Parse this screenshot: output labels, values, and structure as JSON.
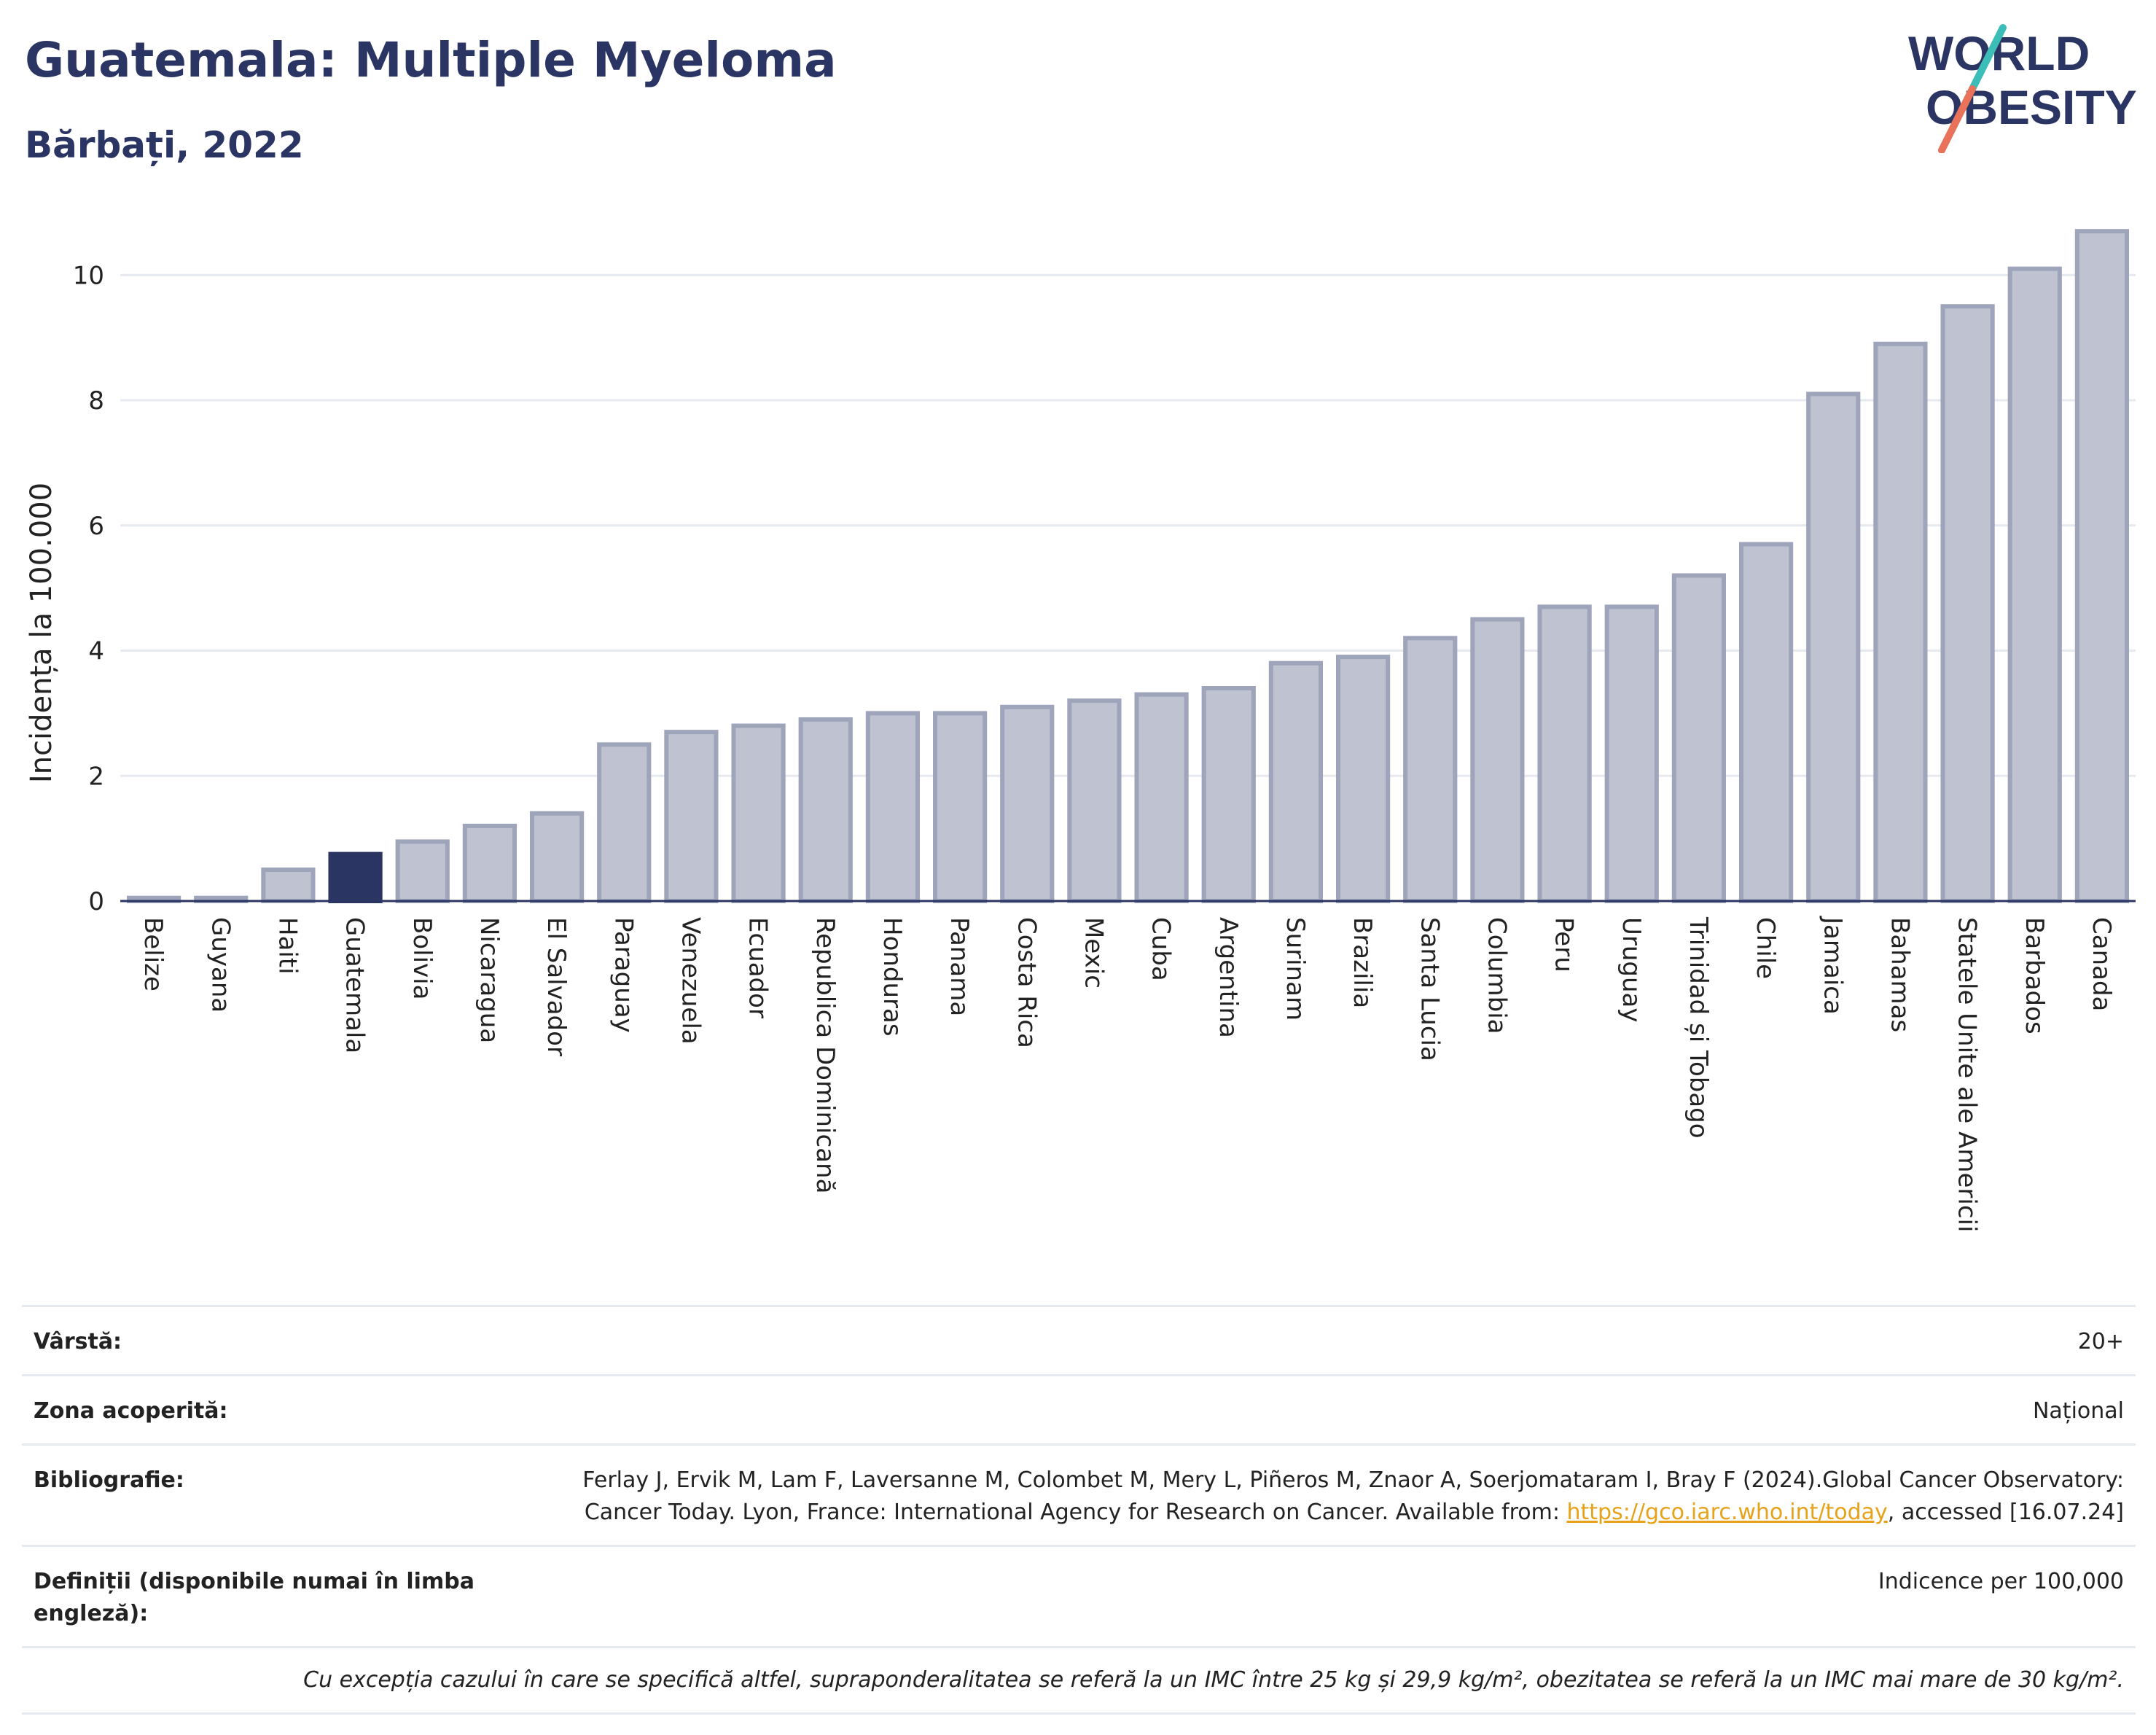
{
  "header": {
    "title": "Guatemala: Multiple Myeloma",
    "subtitle": "Bărbați, 2022"
  },
  "logo": {
    "line1": "WORLD",
    "line2": "OBESITY",
    "slash_color_top": "#3dbdb8",
    "slash_color_bottom": "#e8735a"
  },
  "colors": {
    "bar": "#bfc3d1",
    "bar_border": "#9ea4ba",
    "highlight": "#2b3564",
    "grid": "#e6e9f0",
    "axis": "#2b3564"
  },
  "chart_data": {
    "type": "bar",
    "ylabel": "Incidența la 100.000",
    "ylim": [
      0,
      10.9
    ],
    "yticks": [
      0,
      2,
      4,
      6,
      8,
      10
    ],
    "grid": true,
    "highlight": "Guatemala",
    "categories": [
      "Belize",
      "Guyana",
      "Haiti",
      "Guatemala",
      "Bolivia",
      "Nicaragua",
      "El Salvador",
      "Paraguay",
      "Venezuela",
      "Ecuador",
      "Republica Dominicană",
      "Honduras",
      "Panama",
      "Costa Rica",
      "Mexic",
      "Cuba",
      "Argentina",
      "Surinam",
      "Brazilia",
      "Santa Lucia",
      "Columbia",
      "Peru",
      "Uruguay",
      "Trinidad și Tobago",
      "Chile",
      "Jamaica",
      "Bahamas",
      "Statele Unite ale Americii",
      "Barbados",
      "Canada"
    ],
    "values": [
      0.05,
      0.05,
      0.5,
      0.75,
      0.95,
      1.2,
      1.4,
      2.5,
      2.7,
      2.8,
      2.9,
      3.0,
      3.0,
      3.1,
      3.2,
      3.3,
      3.4,
      3.8,
      3.9,
      4.2,
      4.5,
      4.7,
      4.7,
      5.2,
      5.7,
      8.1,
      8.9,
      9.5,
      10.1,
      10.7
    ]
  },
  "info": {
    "age_label": "Vârstă:",
    "age_value": "20+",
    "area_label": "Zona acoperită:",
    "area_value": "Național",
    "biblio_label": "Bibliografie:",
    "biblio_text1": "Ferlay J, Ervik M, Lam F, Laversanne M, Colombet M, Mery L, Piñeros M, Znaor A, Soerjomataram I, Bray F (2024).Global Cancer Observatory: Cancer Today. Lyon, France: International Agency for Research on Cancer. Available from: ",
    "biblio_link": "https://gco.iarc.who.int/today",
    "biblio_text2": ", accessed [16.07.24]",
    "def_label": "Definiții (disponibile numai în limba engleză):",
    "def_value": "Indicence per 100,000",
    "note": "Cu excepția cazului în care se specifică altfel, supraponderalitatea se referă la un IMC între 25 kg și 29,9 kg/m², obezitatea se referă la un IMC mai mare de 30 kg/m²."
  }
}
